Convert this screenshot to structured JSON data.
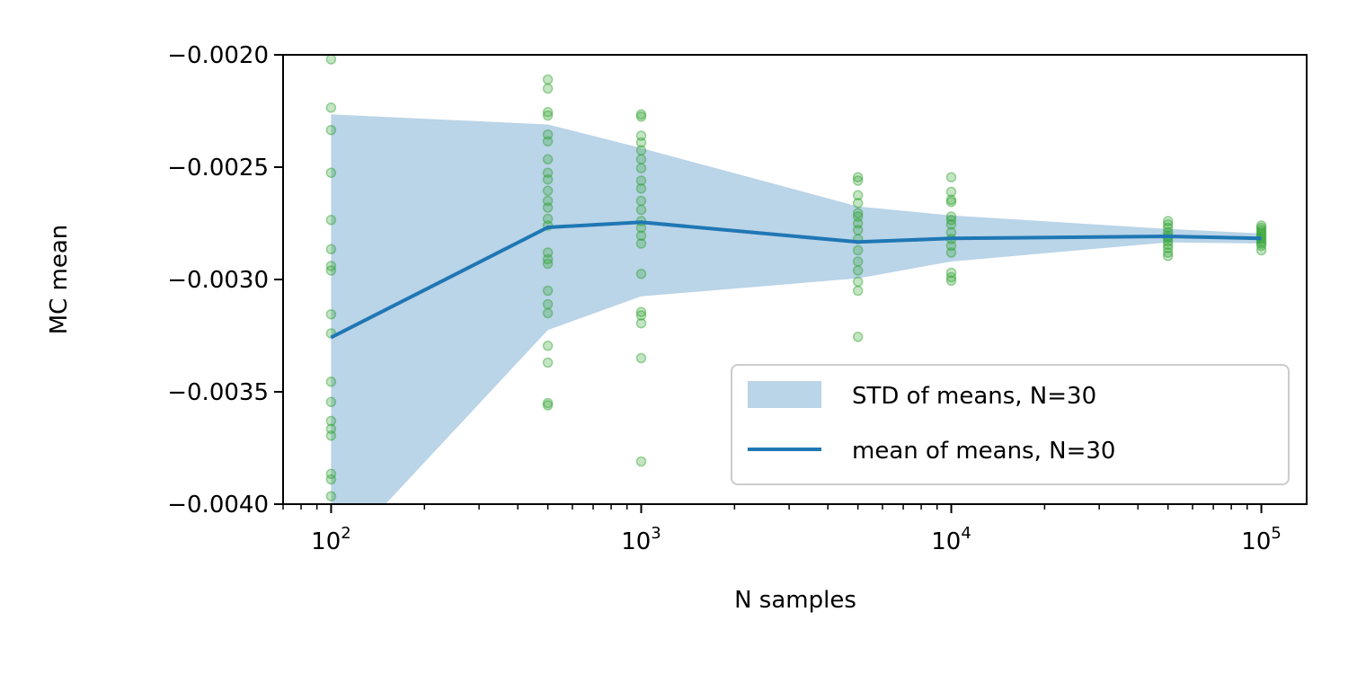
{
  "chart_data": {
    "type": "line",
    "xlabel": "N samples",
    "ylabel": "MC mean",
    "xscale": "log",
    "xlim": [
      70,
      140000
    ],
    "ylim": [
      -0.004,
      -0.002
    ],
    "grid": false,
    "legend_placement": "lower-right",
    "x_ticks": [
      {
        "value": 100,
        "base": "10",
        "exp": "2"
      },
      {
        "value": 1000,
        "base": "10",
        "exp": "3"
      },
      {
        "value": 10000,
        "base": "10",
        "exp": "4"
      },
      {
        "value": 100000,
        "base": "10",
        "exp": "5"
      }
    ],
    "y_ticks": [
      {
        "value": -0.002,
        "label": "−0.0020"
      },
      {
        "value": -0.0025,
        "label": "−0.0025"
      },
      {
        "value": -0.003,
        "label": "−0.0030"
      },
      {
        "value": -0.0035,
        "label": "−0.0035"
      },
      {
        "value": -0.004,
        "label": "−0.0040"
      }
    ],
    "x": [
      100,
      500,
      1000,
      5000,
      10000,
      50000,
      100000
    ],
    "series": [
      {
        "name": "STD of means, N=30",
        "kind": "band",
        "color": "#bad4e8",
        "lower": [
          -0.00426,
          -0.003225,
          -0.003075,
          -0.002995,
          -0.00292,
          -0.002835,
          -0.00284
        ],
        "upper": [
          -0.002265,
          -0.00231,
          -0.002415,
          -0.002675,
          -0.002715,
          -0.002775,
          -0.002795
        ]
      },
      {
        "name": "mean of means, N=30",
        "kind": "line",
        "color": "#1f77b4",
        "values": [
          -0.003258,
          -0.002768,
          -0.002745,
          -0.002833,
          -0.002817,
          -0.002808,
          -0.002817
        ]
      },
      {
        "kind": "scatter",
        "color": "#2ca02c",
        "points": [
          {
            "x": 100,
            "ys": [
              -0.00202,
              -0.002235,
              -0.002335,
              -0.002525,
              -0.002735,
              -0.002865,
              -0.00294,
              -0.00296,
              -0.003155,
              -0.00324,
              -0.003455,
              -0.003545,
              -0.00363,
              -0.003665,
              -0.003695,
              -0.003865,
              -0.00389,
              -0.003965
            ]
          },
          {
            "x": 500,
            "ys": [
              -0.00211,
              -0.00215,
              -0.002255,
              -0.00227,
              -0.002355,
              -0.002385,
              -0.002465,
              -0.002525,
              -0.002555,
              -0.002605,
              -0.00265,
              -0.00268,
              -0.00273,
              -0.00276,
              -0.00288,
              -0.00291,
              -0.00293,
              -0.00305,
              -0.00311,
              -0.00315,
              -0.003295,
              -0.00337,
              -0.00355,
              -0.00356
            ]
          },
          {
            "x": 1000,
            "ys": [
              -0.002265,
              -0.002275,
              -0.00236,
              -0.00239,
              -0.002425,
              -0.002465,
              -0.002505,
              -0.00256,
              -0.002595,
              -0.00265,
              -0.00269,
              -0.00274,
              -0.00277,
              -0.002805,
              -0.00284,
              -0.002975,
              -0.003145,
              -0.00316,
              -0.003195,
              -0.00335,
              -0.00381
            ]
          },
          {
            "x": 5000,
            "ys": [
              -0.002545,
              -0.00256,
              -0.002625,
              -0.00266,
              -0.002705,
              -0.00272,
              -0.00275,
              -0.00278,
              -0.00282,
              -0.00287,
              -0.00292,
              -0.00296,
              -0.00301,
              -0.00305,
              -0.003255
            ]
          },
          {
            "x": 10000,
            "ys": [
              -0.002545,
              -0.00261,
              -0.002645,
              -0.002655,
              -0.00272,
              -0.002735,
              -0.002755,
              -0.00279,
              -0.00282,
              -0.00285,
              -0.00288,
              -0.00297,
              -0.00299,
              -0.003005
            ]
          },
          {
            "x": 50000,
            "ys": [
              -0.00274,
              -0.002755,
              -0.00277,
              -0.00279,
              -0.002805,
              -0.002815,
              -0.00283,
              -0.002845,
              -0.00286,
              -0.00288,
              -0.002895
            ]
          },
          {
            "x": 100000,
            "ys": [
              -0.00276,
              -0.00277,
              -0.00278,
              -0.00279,
              -0.0028,
              -0.00281,
              -0.00282,
              -0.00283,
              -0.00284,
              -0.00285,
              -0.00287
            ]
          }
        ]
      }
    ]
  }
}
